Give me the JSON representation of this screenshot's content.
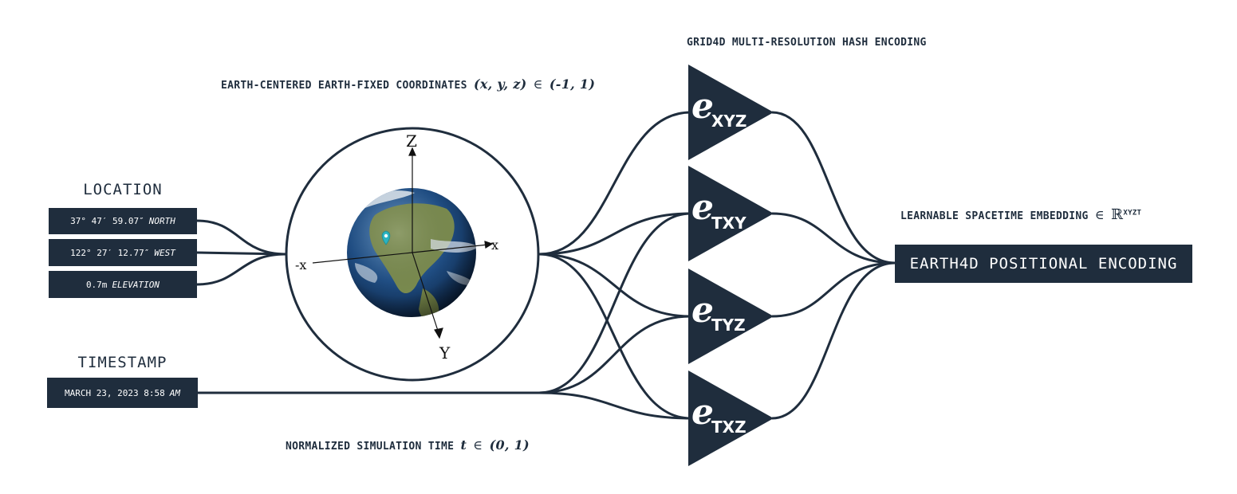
{
  "ecef_caption": {
    "text": "EARTH-CENTERED EARTH-FIXED COORDINATES",
    "math": "(x, y, z)",
    "in": "∈",
    "range": "(-1, 1)"
  },
  "grid_caption": "GRID4D MULTI-RESOLUTION HASH ENCODING",
  "time_caption": {
    "text": "NORMALIZED SIMULATION TIME",
    "math": "t",
    "in": "∈",
    "range": "(0, 1)"
  },
  "embedding_caption": {
    "text": "LEARNABLE SPACETIME EMBEDDING",
    "in": "∈",
    "set": "ℝ",
    "sup": "XYZT"
  },
  "location": {
    "title": "LOCATION",
    "latitude": {
      "value": "37° 47′ 59.07″",
      "unit": "NORTH"
    },
    "longitude": {
      "value": "122° 27′ 12.77″",
      "unit": "WEST"
    },
    "elevation": {
      "value": "0.7m",
      "unit": "ELEVATION"
    }
  },
  "timestamp": {
    "title": "TIMESTAMP",
    "value": "MARCH 23, 2023 8:58",
    "unit": "AM"
  },
  "globe_axes": {
    "z": "Z",
    "x": "x",
    "neg_x": "-x",
    "y": "Y"
  },
  "encoders": [
    {
      "symbol": "e",
      "subscript": "XYZ"
    },
    {
      "symbol": "e",
      "subscript": "TXY"
    },
    {
      "symbol": "e",
      "subscript": "TYZ"
    },
    {
      "symbol": "e",
      "subscript": "TXZ"
    }
  ],
  "output": {
    "label": "EARTH4D POSITIONAL ENCODING"
  },
  "colors": {
    "primary": "#1f2d3d",
    "marker": "#2bb3c0",
    "ocean": "#1b4f8a",
    "land": "#7a8b4f"
  }
}
